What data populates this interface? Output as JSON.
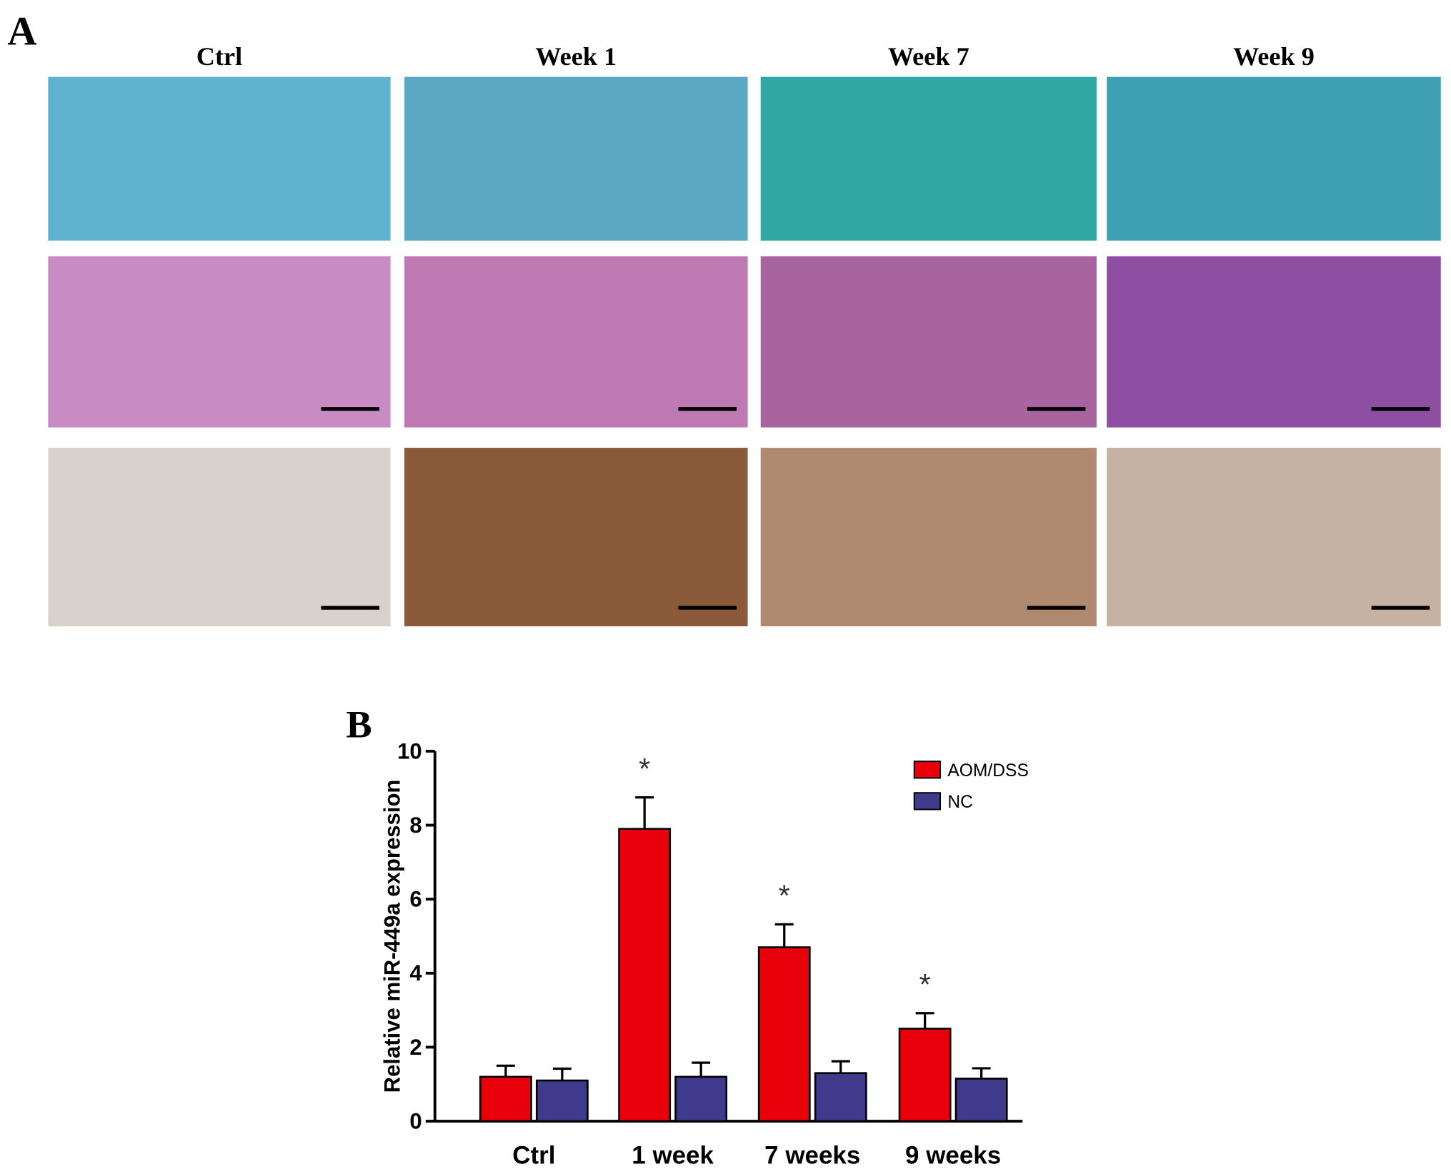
{
  "panel_a": {
    "label": "A",
    "columns": [
      "Ctrl",
      "Week 1",
      "Week 7",
      "Week 9"
    ]
  },
  "chart_data": {
    "type": "bar",
    "label": "B",
    "y_label": "Relative miR-449a expression",
    "categories": [
      "Ctrl",
      "1 week",
      "7 weeks",
      "9 weeks"
    ],
    "series": [
      {
        "name": "AOM/DSS",
        "color": "#e8000b",
        "values": [
          1.2,
          7.9,
          4.7,
          2.5
        ],
        "errors": [
          0.3,
          0.85,
          0.62,
          0.42
        ],
        "markers": [
          null,
          "*",
          "*",
          "*"
        ]
      },
      {
        "name": "NC",
        "color": "#3f3a8c",
        "values": [
          1.1,
          1.2,
          1.3,
          1.15
        ],
        "errors": [
          0.32,
          0.38,
          0.32,
          0.28
        ]
      }
    ],
    "ylim": [
      0,
      10
    ],
    "yticks": [
      0,
      2,
      4,
      6,
      8,
      10
    ]
  }
}
